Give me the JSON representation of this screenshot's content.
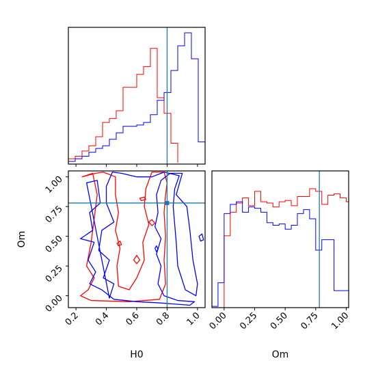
{
  "chart_data": {
    "type": "corner",
    "colors": {
      "series_a": "#ff0000",
      "series_b": "#0000ff",
      "truth": "#1f77b4"
    },
    "truth": {
      "H0": 0.8,
      "Om": 0.78
    },
    "panels": [
      {
        "id": "h0-hist",
        "type": "histogram",
        "xlim": [
          0.15,
          1.05
        ],
        "x_edges": [
          0.15,
          0.195,
          0.24,
          0.285,
          0.33,
          0.375,
          0.42,
          0.465,
          0.51,
          0.555,
          0.6,
          0.645,
          0.69,
          0.735,
          0.78,
          0.825,
          0.87,
          0.915,
          0.96,
          1.005,
          1.05
        ],
        "series": [
          {
            "color": "red",
            "counts": [
              3,
              5,
              9,
              13,
              20,
              31,
              34,
              40,
              58,
              58,
              68,
              74,
              88,
              50,
              38,
              15,
              0,
              0,
              0,
              0
            ]
          },
          {
            "color": "blue",
            "counts": [
              1,
              3,
              5,
              8,
              11,
              13,
              18,
              23,
              28,
              28,
              29,
              31,
              37,
              48,
              54,
              71,
              90,
              100,
              80,
              16
            ]
          }
        ]
      },
      {
        "id": "h0-om-contour",
        "type": "contour",
        "xlabel": "H0",
        "ylabel": "Om",
        "xlim": [
          0.15,
          1.05
        ],
        "ylim": [
          -0.1,
          1.05
        ],
        "xticks": [
          "0.2",
          "0.4",
          "0.6",
          "0.8",
          "1.0"
        ],
        "yticks": [
          "0.00",
          "0.25",
          "0.50",
          "0.75",
          "1.00"
        ],
        "contours": [
          {
            "color": "red",
            "points": [
              [
                0.24,
                1.0
              ],
              [
                0.31,
                1.03
              ],
              [
                0.34,
                0.85
              ],
              [
                0.32,
                0.65
              ],
              [
                0.3,
                0.45
              ],
              [
                0.27,
                0.25
              ],
              [
                0.32,
                0.15
              ],
              [
                0.28,
                0.05
              ],
              [
                0.23,
                0.0
              ],
              [
                0.3,
                -0.04
              ],
              [
                0.55,
                -0.05
              ],
              [
                0.75,
                -0.03
              ],
              [
                0.79,
                0.1
              ],
              [
                0.78,
                0.3
              ],
              [
                0.79,
                0.5
              ],
              [
                0.78,
                0.7
              ],
              [
                0.79,
                0.85
              ],
              [
                0.8,
                0.95
              ],
              [
                0.78,
                1.04
              ],
              [
                0.7,
                1.04
              ],
              [
                0.66,
                0.9
              ],
              [
                0.65,
                0.75
              ],
              [
                0.68,
                0.6
              ],
              [
                0.64,
                0.45
              ],
              [
                0.65,
                0.3
              ],
              [
                0.6,
                0.15
              ],
              [
                0.55,
                0.05
              ],
              [
                0.48,
                0.08
              ],
              [
                0.47,
                0.25
              ],
              [
                0.49,
                0.4
              ],
              [
                0.46,
                0.55
              ],
              [
                0.48,
                0.7
              ],
              [
                0.46,
                0.85
              ],
              [
                0.46,
                1.0
              ],
              [
                0.38,
                1.04
              ],
              [
                0.33,
                1.03
              ]
            ]
          },
          {
            "color": "red",
            "points": [
              [
                0.58,
                0.3
              ],
              [
                0.6,
                0.34
              ],
              [
                0.62,
                0.3
              ],
              [
                0.6,
                0.27
              ]
            ]
          },
          {
            "color": "red",
            "points": [
              [
                0.68,
                0.62
              ],
              [
                0.7,
                0.64
              ],
              [
                0.72,
                0.61
              ],
              [
                0.7,
                0.59
              ]
            ]
          },
          {
            "color": "red",
            "points": [
              [
                0.62,
                0.82
              ],
              [
                0.65,
                0.83
              ],
              [
                0.66,
                0.81
              ],
              [
                0.63,
                0.8
              ]
            ]
          },
          {
            "color": "red",
            "points": [
              [
                0.47,
                0.44
              ],
              [
                0.49,
                0.46
              ],
              [
                0.5,
                0.43
              ],
              [
                0.48,
                0.42
              ]
            ]
          },
          {
            "color": "blue",
            "points": [
              [
                0.27,
                0.95
              ],
              [
                0.34,
                0.97
              ],
              [
                0.36,
                0.78
              ],
              [
                0.29,
                0.7
              ],
              [
                0.31,
                0.55
              ],
              [
                0.23,
                0.48
              ],
              [
                0.32,
                0.45
              ],
              [
                0.28,
                0.3
              ],
              [
                0.33,
                0.2
              ],
              [
                0.29,
                0.1
              ],
              [
                0.37,
                0.05
              ],
              [
                0.45,
                -0.03
              ],
              [
                0.6,
                -0.05
              ],
              [
                0.75,
                -0.06
              ],
              [
                0.95,
                -0.08
              ],
              [
                0.98,
                -0.05
              ],
              [
                0.87,
                -0.04
              ],
              [
                0.78,
                0.0
              ],
              [
                0.74,
                0.1
              ],
              [
                0.76,
                0.25
              ],
              [
                0.73,
                0.35
              ],
              [
                0.76,
                0.48
              ],
              [
                0.72,
                0.58
              ],
              [
                0.74,
                0.7
              ],
              [
                0.73,
                0.85
              ],
              [
                0.76,
                0.97
              ],
              [
                0.82,
                1.03
              ],
              [
                0.9,
                1.03
              ],
              [
                0.86,
                0.85
              ],
              [
                0.93,
                0.75
              ],
              [
                0.95,
                0.55
              ],
              [
                0.97,
                0.3
              ],
              [
                1.0,
                0.1
              ],
              [
                0.99,
                0.0
              ],
              [
                0.92,
                0.05
              ],
              [
                0.87,
                0.25
              ],
              [
                0.86,
                0.45
              ],
              [
                0.85,
                0.6
              ],
              [
                0.84,
                0.75
              ],
              [
                0.85,
                0.9
              ],
              [
                0.88,
                1.01
              ],
              [
                0.78,
                1.04
              ],
              [
                0.7,
                1.0
              ],
              [
                0.6,
                1.0
              ],
              [
                0.5,
                1.03
              ],
              [
                0.44,
                1.04
              ],
              [
                0.4,
                0.92
              ],
              [
                0.4,
                0.78
              ],
              [
                0.45,
                0.62
              ],
              [
                0.37,
                0.55
              ],
              [
                0.35,
                0.38
              ],
              [
                0.42,
                0.3
              ],
              [
                0.38,
                0.15
              ],
              [
                0.45,
                0.1
              ],
              [
                0.42,
                -0.02
              ]
            ]
          },
          {
            "color": "blue",
            "points": [
              [
                1.01,
                0.5
              ],
              [
                1.03,
                0.52
              ],
              [
                1.04,
                0.47
              ],
              [
                1.02,
                0.46
              ]
            ]
          },
          {
            "color": "blue",
            "points": [
              [
                0.72,
                0.4
              ],
              [
                0.73,
                0.42
              ],
              [
                0.74,
                0.39
              ],
              [
                0.73,
                0.37
              ]
            ]
          }
        ]
      },
      {
        "id": "om-hist",
        "type": "histogram",
        "xlabel": "Om",
        "xlim": [
          -0.1,
          1.02
        ],
        "xticks": [
          "0.00",
          "0.25",
          "0.50",
          "0.75",
          "1.00"
        ],
        "x_edges": [
          -0.1,
          -0.05,
          0.0,
          0.05,
          0.1,
          0.15,
          0.2,
          0.25,
          0.3,
          0.35,
          0.4,
          0.45,
          0.5,
          0.55,
          0.6,
          0.65,
          0.7,
          0.75,
          0.8,
          0.85,
          0.9,
          0.95,
          1.0,
          1.02
        ],
        "series": [
          {
            "color": "red",
            "counts": [
              0,
              0,
              55,
              73,
              80,
              84,
              78,
              89,
              81,
              80,
              77,
              81,
              82,
              78,
              85,
              85,
              91,
              89,
              79,
              86,
              87,
              84,
              81
            ]
          },
          {
            "color": "blue",
            "counts": [
              1,
              19,
              72,
              79,
              81,
              73,
              77,
              76,
              73,
              65,
              63,
              64,
              60,
              63,
              72,
              75,
              68,
              44,
              52,
              52,
              13,
              13,
              13
            ]
          }
        ]
      }
    ]
  }
}
